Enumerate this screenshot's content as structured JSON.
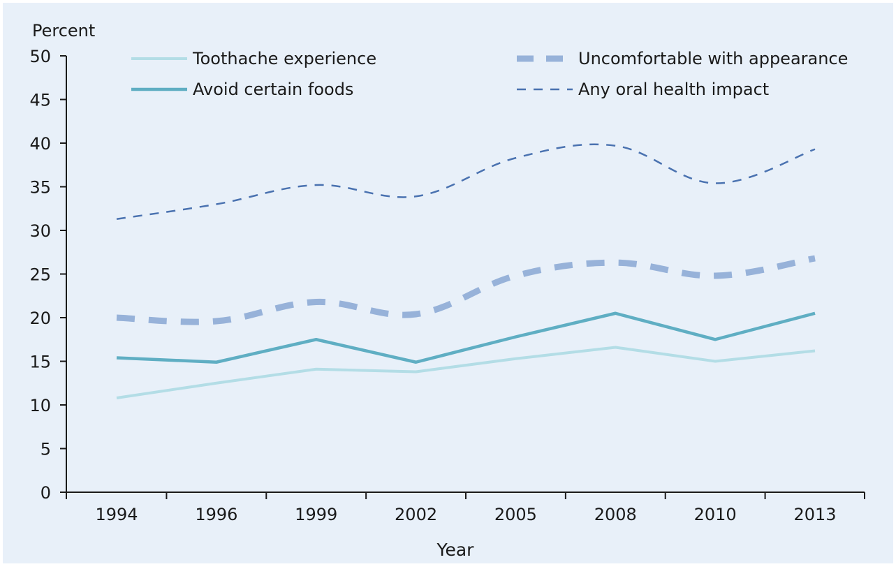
{
  "chart_data": {
    "type": "line",
    "title": "",
    "xlabel": "Year",
    "ylabel": "Percent",
    "categories": [
      "1994",
      "1996",
      "1999",
      "2002",
      "2005",
      "2008",
      "2010",
      "2013"
    ],
    "ylim": [
      0,
      50
    ],
    "yticks": [
      0,
      5,
      10,
      15,
      20,
      25,
      30,
      35,
      40,
      45,
      50
    ],
    "grid": false,
    "legend_position": "top",
    "background_color": "#e8f0f9",
    "series": [
      {
        "name": "Toothache experience",
        "values": [
          10.8,
          12.5,
          14.1,
          13.8,
          15.3,
          16.6,
          15.0,
          16.2
        ],
        "color": "#b3dde6",
        "style": "solid-thin"
      },
      {
        "name": "Avoid certain foods",
        "values": [
          15.4,
          14.9,
          17.5,
          14.9,
          17.8,
          20.5,
          17.5,
          20.5
        ],
        "color": "#5faec3",
        "style": "solid"
      },
      {
        "name": "Uncomfortable with appearance",
        "values": [
          20.0,
          19.6,
          21.8,
          20.4,
          24.8,
          26.3,
          24.8,
          26.8
        ],
        "color": "#97b2d9",
        "style": "thick-dashed"
      },
      {
        "name": "Any oral health impact",
        "values": [
          31.3,
          33.0,
          35.2,
          33.9,
          38.3,
          39.7,
          35.4,
          39.3
        ],
        "color": "#4a72b0",
        "style": "thin-dashed"
      }
    ]
  }
}
